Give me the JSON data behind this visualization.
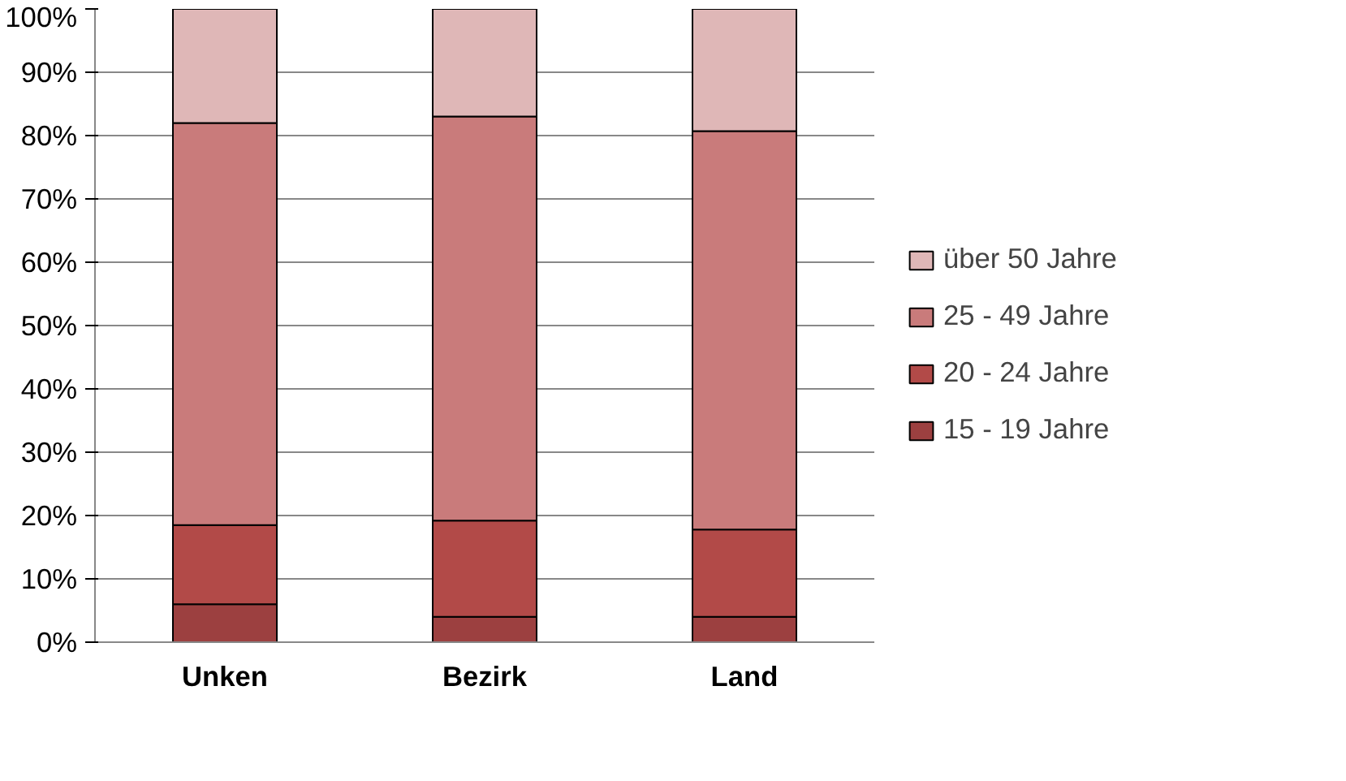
{
  "chart_data": {
    "type": "bar",
    "stacked": true,
    "categories": [
      "Unken",
      "Bezirk",
      "Land"
    ],
    "series": [
      {
        "name": "15 - 19 Jahre",
        "color": "#9c4040",
        "values": [
          6,
          4,
          4
        ]
      },
      {
        "name": "20 - 24 Jahre",
        "color": "#b24a48",
        "values": [
          12.5,
          15.2,
          13.8
        ]
      },
      {
        "name": "25 - 49 Jahre",
        "color": "#c97b7b",
        "values": [
          63.5,
          63.8,
          62.9
        ]
      },
      {
        "name": "über 50 Jahre",
        "color": "#dfb7b7",
        "values": [
          18,
          17,
          19.3
        ]
      }
    ],
    "ylim": [
      0,
      100
    ],
    "yticks": [
      {
        "value": 0,
        "label": "0%"
      },
      {
        "value": 10,
        "label": "10%"
      },
      {
        "value": 20,
        "label": "20%"
      },
      {
        "value": 30,
        "label": "30%"
      },
      {
        "value": 40,
        "label": "40%"
      },
      {
        "value": 50,
        "label": "50%"
      },
      {
        "value": 60,
        "label": "60%"
      },
      {
        "value": 70,
        "label": "70%"
      },
      {
        "value": 80,
        "label": "80%"
      },
      {
        "value": 90,
        "label": "90%"
      },
      {
        "value": 100,
        "label": "100%"
      }
    ],
    "grid": "y",
    "legend": "right"
  }
}
